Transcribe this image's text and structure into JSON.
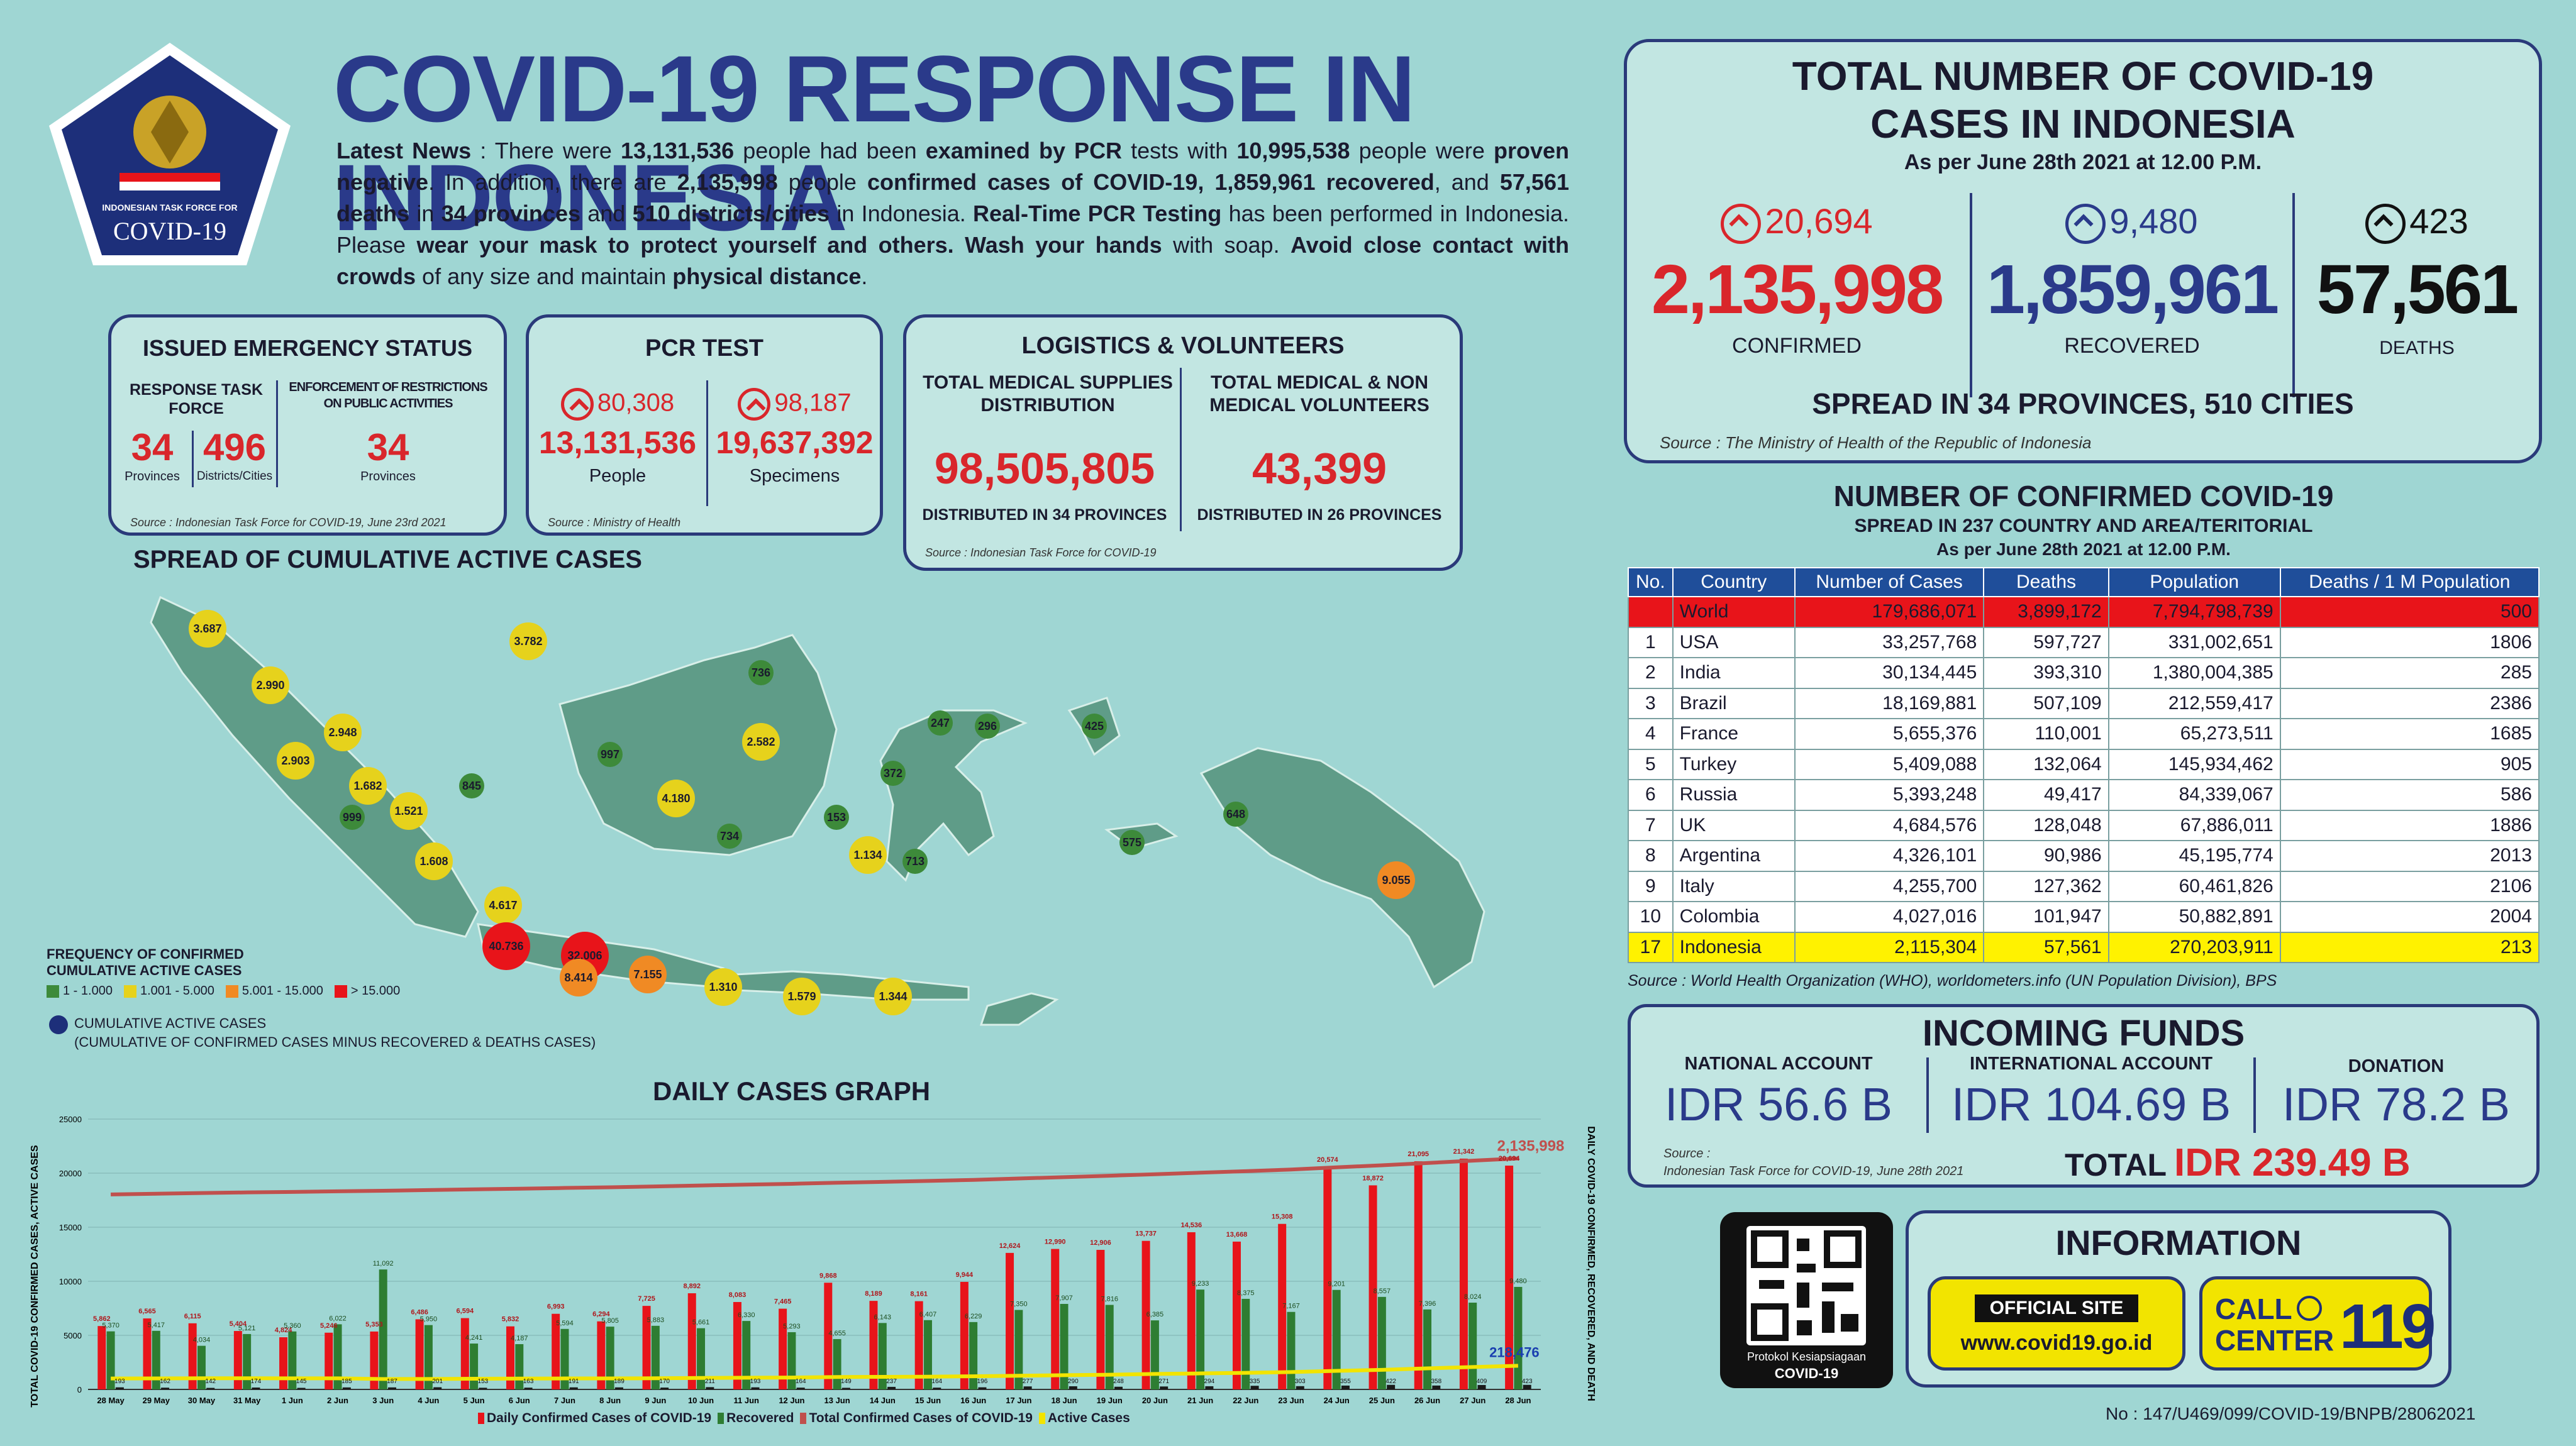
{
  "header": {
    "title": "COVID-19 RESPONSE IN INDONESIA",
    "logo_text_1": "INDONESIAN TASK FORCE FOR",
    "logo_text_2": "COVID-19",
    "news": [
      {
        "t": "Latest News",
        "b": true
      },
      {
        "t": " : There were ",
        "b": false
      },
      {
        "t": "13,131,536",
        "b": true
      },
      {
        "t": " people had been ",
        "b": false
      },
      {
        "t": "examined by PCR",
        "b": true
      },
      {
        "t": " tests with ",
        "b": false
      },
      {
        "t": "10,995,538",
        "b": true
      },
      {
        "t": " people were ",
        "b": false
      },
      {
        "t": "proven negative",
        "b": true
      },
      {
        "t": ". In addition, there are ",
        "b": false
      },
      {
        "t": "2,135,998",
        "b": true
      },
      {
        "t": " people ",
        "b": false
      },
      {
        "t": "confirmed cases of COVID-19, 1,859,961 recovered",
        "b": true
      },
      {
        "t": ", and ",
        "b": false
      },
      {
        "t": "57,561 deaths",
        "b": true
      },
      {
        "t": " in ",
        "b": false
      },
      {
        "t": "34 provinces",
        "b": true
      },
      {
        "t": " and ",
        "b": false
      },
      {
        "t": "510 districts/cities",
        "b": true
      },
      {
        "t": " in Indonesia. ",
        "b": false
      },
      {
        "t": "Real-Time PCR Testing",
        "b": true
      },
      {
        "t": " has been performed in Indonesia. Please ",
        "b": false
      },
      {
        "t": "wear your mask to protect yourself and others. Wash your hands",
        "b": true
      },
      {
        "t": " with soap. ",
        "b": false
      },
      {
        "t": "Avoid close contact with crowds",
        "b": true
      },
      {
        "t": " of any size and maintain ",
        "b": false
      },
      {
        "t": "physical distance",
        "b": true
      },
      {
        "t": ".",
        "b": false
      }
    ]
  },
  "emergency": {
    "title": "ISSUED EMERGENCY STATUS",
    "col1": "RESPONSE TASK FORCE",
    "col2": "ENFORCEMENT OF RESTRICTIONS ON PUBLIC ACTIVITIES",
    "n1": "34",
    "l1": "Provinces",
    "n2": "496",
    "l2": "Districts/Cities",
    "n3": "34",
    "l3": "Provinces",
    "source": "Source : Indonesian Task Force for COVID-19, June 23rd 2021"
  },
  "pcr": {
    "title": "PCR TEST",
    "inc1": "80,308",
    "inc2": "98,187",
    "people": "13,131,536",
    "specimens": "19,637,392",
    "l1": "People",
    "l2": "Specimens",
    "source": "Source : Ministry of Health"
  },
  "logistics": {
    "title": "LOGISTICS & VOLUNTEERS",
    "h1": "TOTAL MEDICAL SUPPLIES DISTRIBUTION",
    "h2": "TOTAL MEDICAL & NON MEDICAL VOLUNTEERS",
    "n1": "98,505,805",
    "n2": "43,399",
    "d1": "DISTRIBUTED IN 34 PROVINCES",
    "d2": "DISTRIBUTED IN 26 PROVINCES",
    "source": "Source : Indonesian Task Force for COVID-19"
  },
  "totals": {
    "title1": "TOTAL NUMBER OF COVID-19",
    "title2": "CASES IN INDONESIA",
    "asof": "As per June 28th 2021 at 12.00 P.M.",
    "conf_inc": "20,694",
    "rec_inc": "9,480",
    "death_inc": "423",
    "confirmed": "2,135,998",
    "recovered": "1,859,961",
    "deaths": "57,561",
    "l_conf": "CONFIRMED",
    "l_rec": "RECOVERED",
    "l_death": "DEATHS",
    "spread": "SPREAD IN 34 PROVINCES, 510 CITIES",
    "source": "Source : The Ministry of Health of the Republic of Indonesia"
  },
  "world": {
    "title": "NUMBER OF CONFIRMED COVID-19",
    "sub": "SPREAD IN 237 COUNTRY AND AREA/TERITORIAL",
    "asof": "As per June 28th 2021 at 12.00 P.M.",
    "headers": [
      "No.",
      "Country",
      "Number of Cases",
      "Deaths",
      "Population",
      "Deaths / 1 M Population"
    ],
    "rows": [
      [
        "",
        "World",
        "179,686,071",
        "3,899,172",
        "7,794,798,739",
        "500"
      ],
      [
        "1",
        "USA",
        "33,257,768",
        "597,727",
        "331,002,651",
        "1806"
      ],
      [
        "2",
        "India",
        "30,134,445",
        "393,310",
        "1,380,004,385",
        "285"
      ],
      [
        "3",
        "Brazil",
        "18,169,881",
        "507,109",
        "212,559,417",
        "2386"
      ],
      [
        "4",
        "France",
        "5,655,376",
        "110,001",
        "65,273,511",
        "1685"
      ],
      [
        "5",
        "Turkey",
        "5,409,088",
        "132,064",
        "145,934,462",
        "905"
      ],
      [
        "6",
        "Russia",
        "5,393,248",
        "49,417",
        "84,339,067",
        "586"
      ],
      [
        "7",
        "UK",
        "4,684,576",
        "128,048",
        "67,886,011",
        "1886"
      ],
      [
        "8",
        "Argentina",
        "4,326,101",
        "90,986",
        "45,195,774",
        "2013"
      ],
      [
        "9",
        "Italy",
        "4,255,700",
        "127,362",
        "60,461,826",
        "2106"
      ],
      [
        "10",
        "Colombia",
        "4,027,016",
        "101,947",
        "50,882,891",
        "2004"
      ],
      [
        "17",
        "Indonesia",
        "2,115,304",
        "57,561",
        "270,203,911",
        "213"
      ]
    ],
    "source": "Source : World Health Organization (WHO), worldometers.info (UN Population Division), BPS"
  },
  "funds": {
    "title": "INCOMING FUNDS",
    "h1": "NATIONAL ACCOUNT",
    "h2": "INTERNATIONAL ACCOUNT",
    "h3": "DONATION",
    "v1": "IDR 56.6 B",
    "v2": "IDR 104.69 B",
    "v3": "IDR 78.2 B",
    "source1": "Source :",
    "source2": "Indonesian Task Force for COVID-19, June 28th 2021",
    "total_label": "TOTAL",
    "total": "IDR 239.49 B"
  },
  "info": {
    "qr_caption1": "Protokol Kesiapsiagaan",
    "qr_caption2": "COVID-19",
    "title": "INFORMATION",
    "official": "OFFICIAL SITE",
    "site": "www.covid19.go.id",
    "call1": "CALL",
    "call2": "CENTER",
    "call_num": "119"
  },
  "footer": {
    "doc_no": "No : 147/U469/099/COVID-19/BNPB/28062021"
  },
  "map": {
    "title": "SPREAD OF CUMULATIVE ACTIVE CASES",
    "legend_title1": "FREQUENCY OF CONFIRMED",
    "legend_title2": "CUMULATIVE ACTIVE CASES",
    "legend": [
      {
        "label": "1 - 1.000",
        "color": "#3d8a3a"
      },
      {
        "label": "1.001 - 5.000",
        "color": "#e6d21c"
      },
      {
        "label": "5.001 - 15.000",
        "color": "#f08a24"
      },
      {
        "label": "> 15.000",
        "color": "#e8141a"
      }
    ],
    "note1": "CUMULATIVE ACTIVE CASES",
    "note2": "(CUMULATIVE OF CONFIRMED CASES MINUS RECOVERED & DEATHS CASES)",
    "bubbles": [
      {
        "v": "3.687",
        "c": "#e6d21c"
      },
      {
        "v": "2.990",
        "c": "#e6d21c"
      },
      {
        "v": "2.948",
        "c": "#e6d21c"
      },
      {
        "v": "2.903",
        "c": "#e6d21c"
      },
      {
        "v": "1.682",
        "c": "#e6d21c"
      },
      {
        "v": "845",
        "c": "#3d8a3a"
      },
      {
        "v": "999",
        "c": "#3d8a3a"
      },
      {
        "v": "1.521",
        "c": "#e6d21c"
      },
      {
        "v": "1.608",
        "c": "#e6d21c"
      },
      {
        "v": "4.617",
        "c": "#e6d21c"
      },
      {
        "v": "40.736",
        "c": "#e8141a"
      },
      {
        "v": "32.006",
        "c": "#e8141a"
      },
      {
        "v": "8.414",
        "c": "#f08a24"
      },
      {
        "v": "7.155",
        "c": "#f08a24"
      },
      {
        "v": "1.310",
        "c": "#e6d21c"
      },
      {
        "v": "1.579",
        "c": "#e6d21c"
      },
      {
        "v": "1.344",
        "c": "#e6d21c"
      },
      {
        "v": "3.782",
        "c": "#e6d21c"
      },
      {
        "v": "736",
        "c": "#3d8a3a"
      },
      {
        "v": "997",
        "c": "#3d8a3a"
      },
      {
        "v": "2.582",
        "c": "#e6d21c"
      },
      {
        "v": "4.180",
        "c": "#e6d21c"
      },
      {
        "v": "734",
        "c": "#3d8a3a"
      },
      {
        "v": "247",
        "c": "#3d8a3a"
      },
      {
        "v": "296",
        "c": "#3d8a3a"
      },
      {
        "v": "425",
        "c": "#3d8a3a"
      },
      {
        "v": "372",
        "c": "#3d8a3a"
      },
      {
        "v": "153",
        "c": "#3d8a3a"
      },
      {
        "v": "1.134",
        "c": "#e6d21c"
      },
      {
        "v": "713",
        "c": "#3d8a3a"
      },
      {
        "v": "575",
        "c": "#3d8a3a"
      },
      {
        "v": "648",
        "c": "#3d8a3a"
      },
      {
        "v": "9.055",
        "c": "#f08a24"
      }
    ]
  },
  "chart_data": {
    "type": "bar",
    "title": "DAILY CASES GRAPH",
    "ylabel": "TOTAL COVID-19 CONFIRMED CASES, ACTIVE CASES",
    "ylabel_right": "DAILY COVID-19 CONFIRMED, RECOVERED, AND DEATH",
    "ylim": [
      0,
      25000
    ],
    "y_ticks": [
      "0",
      "5000",
      "10000",
      "15000",
      "20000",
      "25000"
    ],
    "categories": [
      "28 May",
      "29 May",
      "30 May",
      "31 May",
      "1 Jun",
      "2 Jun",
      "3 Jun",
      "4 Jun",
      "5 Jun",
      "6 Jun",
      "7 Jun",
      "8 Jun",
      "9 Jun",
      "10 Jun",
      "11 Jun",
      "12 Jun",
      "13 Jun",
      "14 Jun",
      "15 Jun",
      "16 Jun",
      "17 Jun",
      "18 Jun",
      "19 Jun",
      "20 Jun",
      "21 Jun",
      "22 Jun",
      "23 Jun",
      "24 Jun",
      "25 Jun",
      "26 Jun",
      "27 Jun",
      "28 Jun"
    ],
    "series": [
      {
        "name": "Daily Confirmed Cases of COVID-19",
        "color": "#e8141a",
        "values": [
          5862,
          6565,
          6115,
          5404,
          4824,
          5246,
          5353,
          6486,
          6594,
          5832,
          6993,
          6294,
          7725,
          8892,
          8083,
          7465,
          9868,
          8189,
          8161,
          9944,
          12624,
          12990,
          12906,
          13737,
          14536,
          13668,
          15308,
          20574,
          18872,
          21095,
          21342,
          20694
        ]
      },
      {
        "name": "Recovered",
        "color": "#2e7d32",
        "values": [
          5370,
          5417,
          4034,
          5121,
          5360,
          6022,
          11092,
          5950,
          4241,
          4187,
          5594,
          5805,
          5883,
          5661,
          6330,
          5293,
          4655,
          6143,
          6407,
          6229,
          7350,
          7907,
          7816,
          6385,
          9233,
          8375,
          7167,
          9201,
          8557,
          7396,
          8024,
          9480
        ]
      },
      {
        "name": "Deaths",
        "color": "#1a1a1a",
        "values": [
          193,
          162,
          142,
          174,
          145,
          185,
          187,
          201,
          153,
          163,
          191,
          189,
          170,
          211,
          193,
          164,
          149,
          237,
          164,
          196,
          277,
          290,
          248,
          271,
          294,
          335,
          303,
          355,
          422,
          358,
          409,
          423
        ]
      },
      {
        "name": "Total Confirmed Cases of COVID-19",
        "color": "#c0504d",
        "label_last": "2,135,998",
        "values": [
          1803361,
          1809926,
          1816041,
          1821703,
          1826527,
          1831773,
          1837126,
          1843612,
          1850206,
          1856038,
          1863031,
          1869325,
          1877050,
          1885942,
          1894025,
          1901490,
          1911358,
          1919547,
          1927708,
          1937652,
          1950276,
          1963266,
          1976172,
          1989909,
          2004445,
          2018113,
          2033421,
          2053995,
          2072867,
          2093962,
          2115304,
          2135998
        ]
      },
      {
        "name": "Active Cases",
        "color": "#f2e400",
        "label_last": "218,476",
        "values": [
          100854,
          101850,
          103289,
          102899,
          102178,
          102138,
          96294,
          96660,
          98811,
          100299,
          101508,
          101765,
          103395,
          106446,
          107965,
          109958,
          114815,
          116376,
          117968,
          121477,
          126486,
          131273,
          136113,
          143106,
          148036,
          153017,
          160819,
          171474,
          181267,
          194569,
          207219,
          218476
        ]
      }
    ],
    "bar_labels_conf": [
      "5,862",
      "6,565",
      "6,115",
      "5,404",
      "4,824",
      "5,246",
      "5,353",
      "6,486",
      "6,594",
      "5,832",
      "6,993",
      "6,294",
      "7,725",
      "8,892",
      "8,083",
      "7,465",
      "9,868",
      "8,189",
      "8,161",
      "9,944",
      "12,624",
      "12,990",
      "12,906",
      "13,737",
      "14,536",
      "13,668",
      "15,308",
      "20,574",
      "18,872",
      "21,095",
      "21,342",
      "20,694"
    ],
    "bar_labels_rec": [
      "5,370",
      "5,417",
      "4,034",
      "5,121",
      "5,360",
      "6,022",
      "11,092",
      "5,950",
      "4,241",
      "4,187",
      "5,594",
      "5,805",
      "5,883",
      "5,661",
      "6,330",
      "5,293",
      "4,655",
      "6,143",
      "6,407",
      "6,229",
      "7,350",
      "7,907",
      "7,816",
      "6,385",
      "9,233",
      "8,375",
      "7,167",
      "9,201",
      "8,557",
      "7,396",
      "8,024",
      "9,480"
    ],
    "legend": [
      "Daily Confirmed Cases of COVID-19",
      "Recovered",
      "Total Confirmed Cases of COVID-19",
      "Active Cases"
    ]
  }
}
